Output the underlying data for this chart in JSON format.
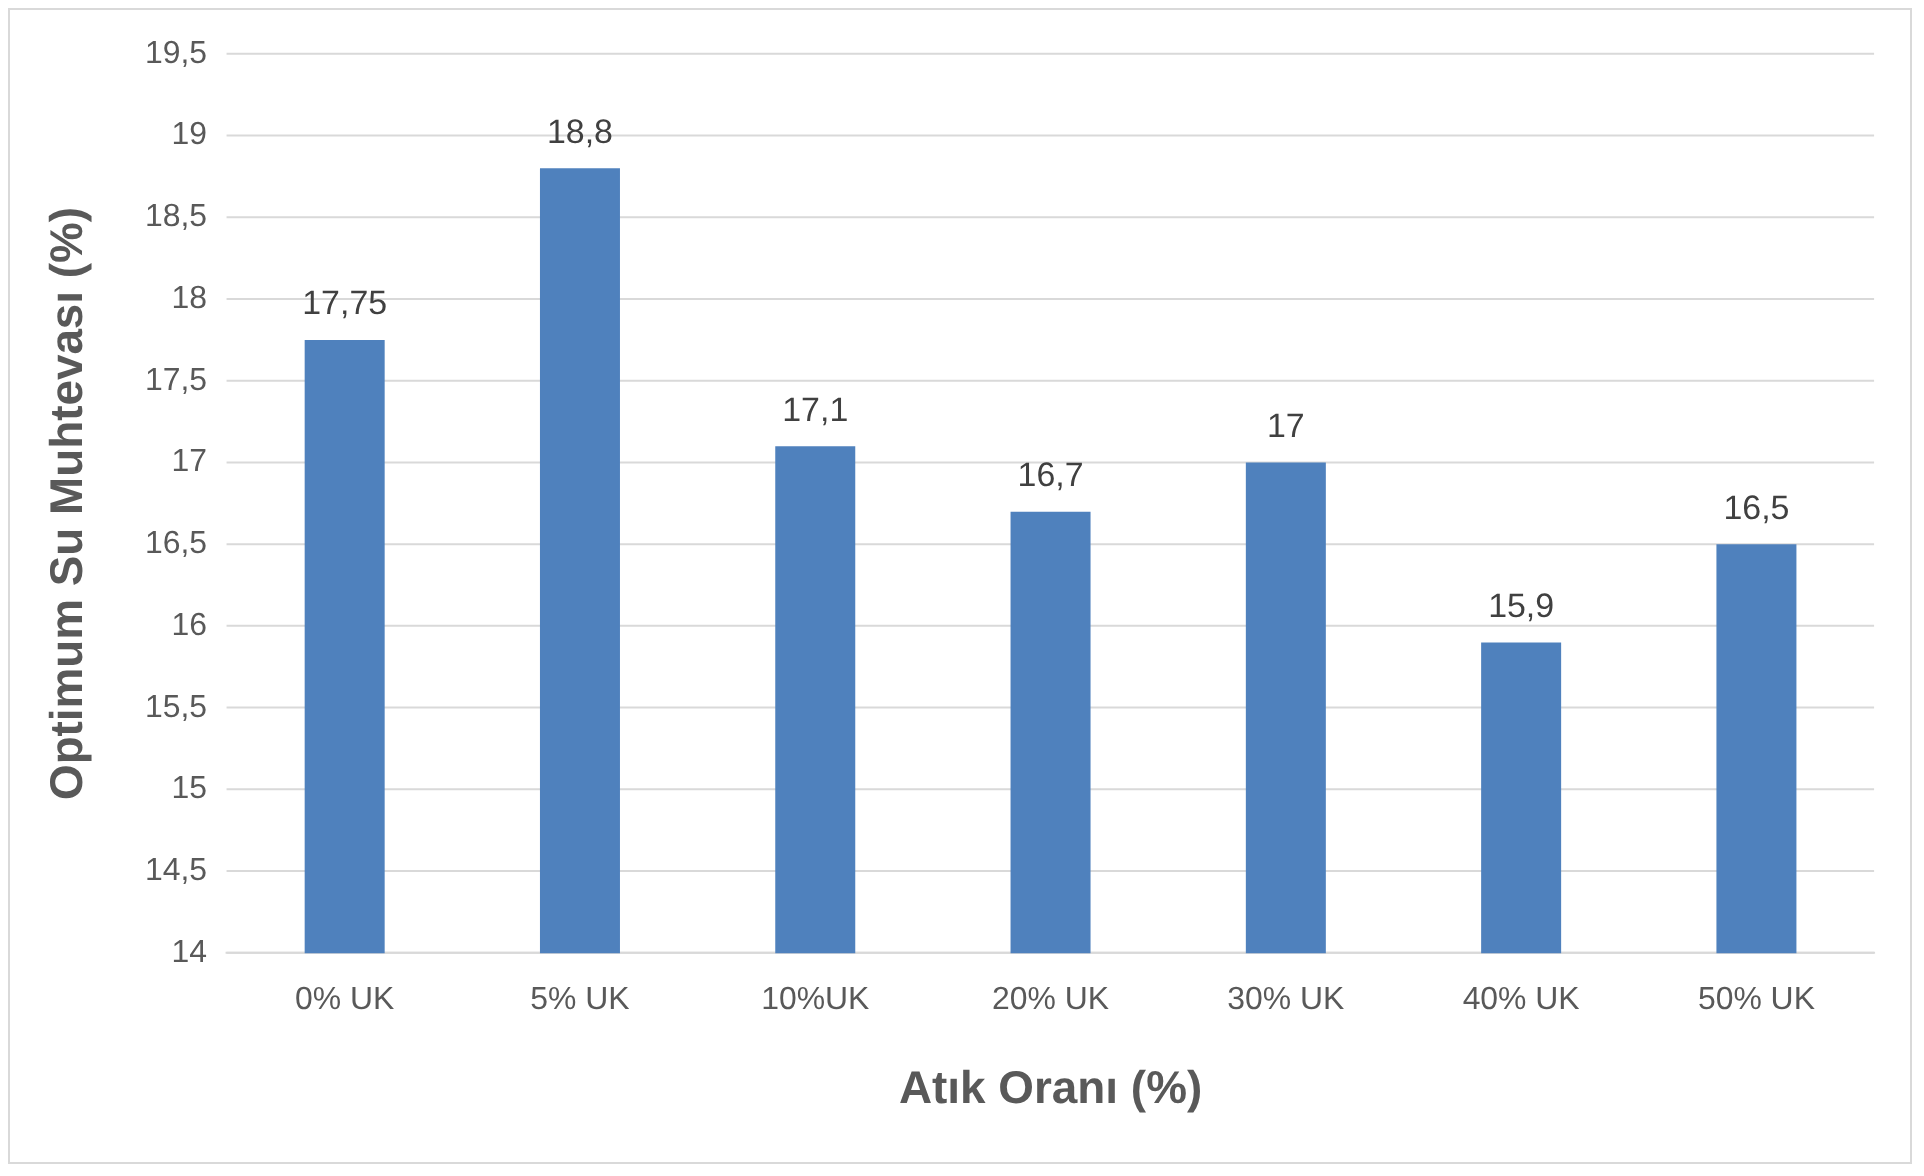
{
  "chart_data": {
    "type": "bar",
    "xlabel": "Atık Oranı (%)",
    "ylabel": "Optimum Su Muhtevası (%)",
    "categories": [
      "0% UK",
      "5% UK",
      "10%UK",
      "20% UK",
      "30% UK",
      "40% UK",
      "50% UK"
    ],
    "values": [
      17.75,
      18.8,
      17.1,
      16.7,
      17,
      15.9,
      16.5
    ],
    "value_labels": [
      "17,75",
      "18,8",
      "17,1",
      "16,7",
      "17",
      "15,9",
      "16,5"
    ],
    "color": "#4f81bd",
    "ylim": [
      14,
      19.5
    ],
    "yticks": [
      14,
      {
        "value": 14.5,
        "label": "14,5"
      },
      15,
      {
        "value": 15.5,
        "label": "15,5"
      },
      16,
      {
        "value": 16.5,
        "label": "16,5"
      },
      17,
      {
        "value": 17.5,
        "label": "17,5"
      },
      18,
      {
        "value": 18.5,
        "label": "18,5"
      },
      19,
      {
        "value": 19.5,
        "label": "19,5"
      }
    ],
    "grid": "y"
  }
}
